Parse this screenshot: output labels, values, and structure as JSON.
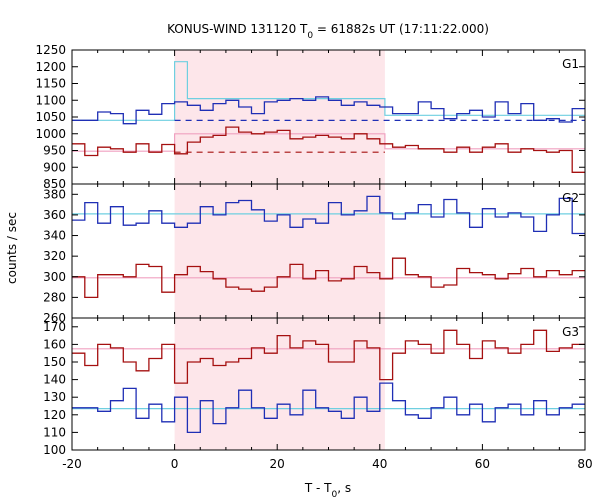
{
  "chart_data": {
    "type": "line",
    "title": "KONUS-WIND 131120 T",
    "title_sub": "0",
    "title_rest": " = 61882s UT (17:11:22.000)",
    "xlabel": "T - T",
    "xlabel_sub": "0",
    "xlabel_rest": ", s",
    "ylabel": "counts / sec",
    "xlim": [
      -20,
      80
    ],
    "x_ticks": [
      "-20",
      "0",
      "20",
      "40",
      "60",
      "80"
    ],
    "highlight_interval": [
      0,
      41
    ],
    "bin_edges": [
      -20,
      -17.5,
      -15,
      -12.5,
      -10,
      -7.5,
      -5,
      -2.5,
      0,
      2.5,
      5,
      7.5,
      10,
      12.5,
      15,
      17.5,
      20,
      22.5,
      25,
      27.5,
      30,
      32.5,
      35,
      37.5,
      40,
      42.5,
      45,
      47.5,
      50,
      52.5,
      55,
      57.5,
      60,
      62.5,
      65,
      67.5,
      70,
      72.5,
      75,
      77.5,
      80
    ],
    "panels": [
      {
        "name": "G1",
        "ylim": [
          850,
          1250
        ],
        "y_ticks": [
          850,
          900,
          950,
          1000,
          1050,
          1100,
          1150,
          1200,
          1250
        ],
        "series": [
          {
            "color": "#1f2fb5",
            "values": [
              1040,
              1040,
              1065,
              1060,
              1030,
              1070,
              1058,
              1090,
              1095,
              1085,
              1070,
              1090,
              1100,
              1080,
              1060,
              1095,
              1100,
              1105,
              1100,
              1110,
              1100,
              1085,
              1095,
              1085,
              1080,
              1060,
              1060,
              1095,
              1075,
              1045,
              1060,
              1070,
              1050,
              1095,
              1060,
              1090,
              1040,
              1045,
              1035,
              1075
            ]
          },
          {
            "color": "#a51010",
            "values": [
              970,
              935,
              960,
              955,
              945,
              970,
              945,
              968,
              940,
              975,
              990,
              995,
              1020,
              1005,
              1000,
              1005,
              1010,
              985,
              990,
              995,
              990,
              985,
              1000,
              985,
              970,
              960,
              965,
              955,
              955,
              945,
              960,
              945,
              960,
              970,
              945,
              955,
              950,
              945,
              950,
              885
            ]
          }
        ],
        "steps": [
          {
            "color": "#6fcfe0",
            "points": [
              [
                -20,
                1040
              ],
              [
                0,
                1040
              ],
              [
                0,
                1215
              ],
              [
                2.5,
                1215
              ],
              [
                2.5,
                1105
              ],
              [
                41,
                1105
              ],
              [
                41,
                1055
              ],
              [
                80,
                1055
              ]
            ]
          },
          {
            "color": "#f0a0c0",
            "points": [
              [
                -20,
                948
              ],
              [
                0,
                948
              ],
              [
                0,
                1000
              ],
              [
                41,
                1000
              ],
              [
                41,
                955
              ],
              [
                80,
                955
              ]
            ]
          }
        ],
        "dashed": [
          {
            "color": "#1f2fb5",
            "y": 1040,
            "from": 0,
            "to": 80
          },
          {
            "color": "#a51010",
            "y": 945,
            "from": 0,
            "to": 41
          }
        ]
      },
      {
        "name": "G2",
        "ylim": [
          260,
          390
        ],
        "y_ticks": [
          260,
          280,
          300,
          320,
          340,
          360,
          380
        ],
        "series": [
          {
            "color": "#1f2fb5",
            "values": [
              355,
              372,
              352,
              368,
              350,
              352,
              364,
              352,
              348,
              352,
              368,
              360,
              372,
              374,
              365,
              354,
              360,
              348,
              356,
              352,
              372,
              360,
              364,
              378,
              362,
              356,
              362,
              370,
              358,
              375,
              362,
              348,
              366,
              358,
              362,
              358,
              344,
              360,
              376,
              342
            ]
          },
          {
            "color": "#a51010",
            "values": [
              300,
              280,
              302,
              302,
              300,
              312,
              310,
              285,
              302,
              310,
              305,
              298,
              290,
              288,
              286,
              290,
              300,
              312,
              298,
              306,
              296,
              298,
              310,
              304,
              298,
              318,
              302,
              300,
              290,
              292,
              308,
              304,
              302,
              298,
              303,
              308,
              300,
              306,
              302,
              306
            ]
          }
        ],
        "steps": [
          {
            "color": "#6fcfe0",
            "points": [
              [
                -20,
                361
              ],
              [
                80,
                361
              ]
            ]
          },
          {
            "color": "#f0a0c0",
            "points": [
              [
                -20,
                299
              ],
              [
                80,
                299
              ]
            ]
          }
        ],
        "dashed": []
      },
      {
        "name": "G3",
        "ylim": [
          100,
          175
        ],
        "y_ticks": [
          100,
          110,
          120,
          130,
          140,
          150,
          160,
          170
        ],
        "series": [
          {
            "color": "#1f2fb5",
            "values": [
              124,
              124,
              122,
              128,
              135,
              118,
              126,
              116,
              130,
              110,
              128,
              115,
              124,
              134,
              124,
              118,
              126,
              120,
              134,
              124,
              122,
              118,
              130,
              122,
              138,
              128,
              120,
              118,
              124,
              130,
              120,
              126,
              116,
              124,
              126,
              120,
              128,
              120,
              124,
              126
            ]
          },
          {
            "color": "#a51010",
            "values": [
              155,
              148,
              160,
              158,
              150,
              145,
              152,
              160,
              138,
              150,
              152,
              148,
              150,
              152,
              158,
              155,
              165,
              158,
              162,
              160,
              150,
              150,
              162,
              158,
              140,
              155,
              162,
              160,
              155,
              168,
              160,
              152,
              162,
              158,
              155,
              160,
              168,
              156,
              158,
              160
            ]
          }
        ],
        "steps": [
          {
            "color": "#6fcfe0",
            "points": [
              [
                -20,
                123.5
              ],
              [
                80,
                123.5
              ]
            ]
          },
          {
            "color": "#f0a0c0",
            "points": [
              [
                -20,
                157.5
              ],
              [
                80,
                157.5
              ]
            ]
          }
        ],
        "dashed": []
      }
    ]
  }
}
